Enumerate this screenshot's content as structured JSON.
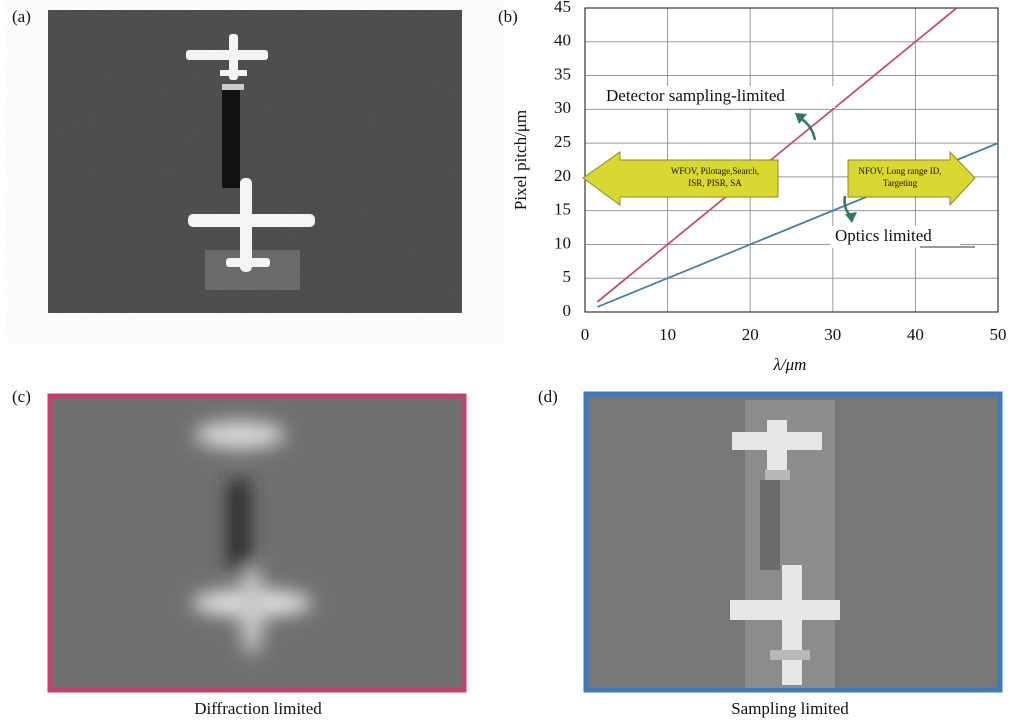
{
  "panels": {
    "a": "(a)",
    "b": "(b)",
    "c": "(c)",
    "d": "(d)"
  },
  "captions": {
    "c": "Diffraction limited",
    "d": "Sampling limited"
  },
  "chart_data": {
    "type": "line",
    "x_label": "λ/μm",
    "y_label": "Pixel pitch/μm",
    "x": [
      1.5,
      45,
      50
    ],
    "series": [
      {
        "name": "Detector sampling-limited",
        "color": "#c8506a",
        "values": [
          1.5,
          45,
          null
        ]
      },
      {
        "name": "Optics limited",
        "color": "#4a7fa8",
        "values": [
          0.75,
          22.5,
          25
        ]
      }
    ],
    "annotations": [
      {
        "lines": [
          "WFOV, Pilotage,Search,",
          "ISR, PISR, SA"
        ]
      },
      {
        "lines": [
          "NFOV, Long range ID,",
          "Targeting"
        ]
      }
    ],
    "xlim": [
      0,
      50
    ],
    "xticks": [
      0,
      10,
      20,
      30,
      40,
      50
    ],
    "ylim": [
      0,
      45
    ],
    "yticks": [
      0,
      5,
      10,
      15,
      20,
      25,
      30,
      35,
      40,
      45
    ],
    "grid": true
  }
}
